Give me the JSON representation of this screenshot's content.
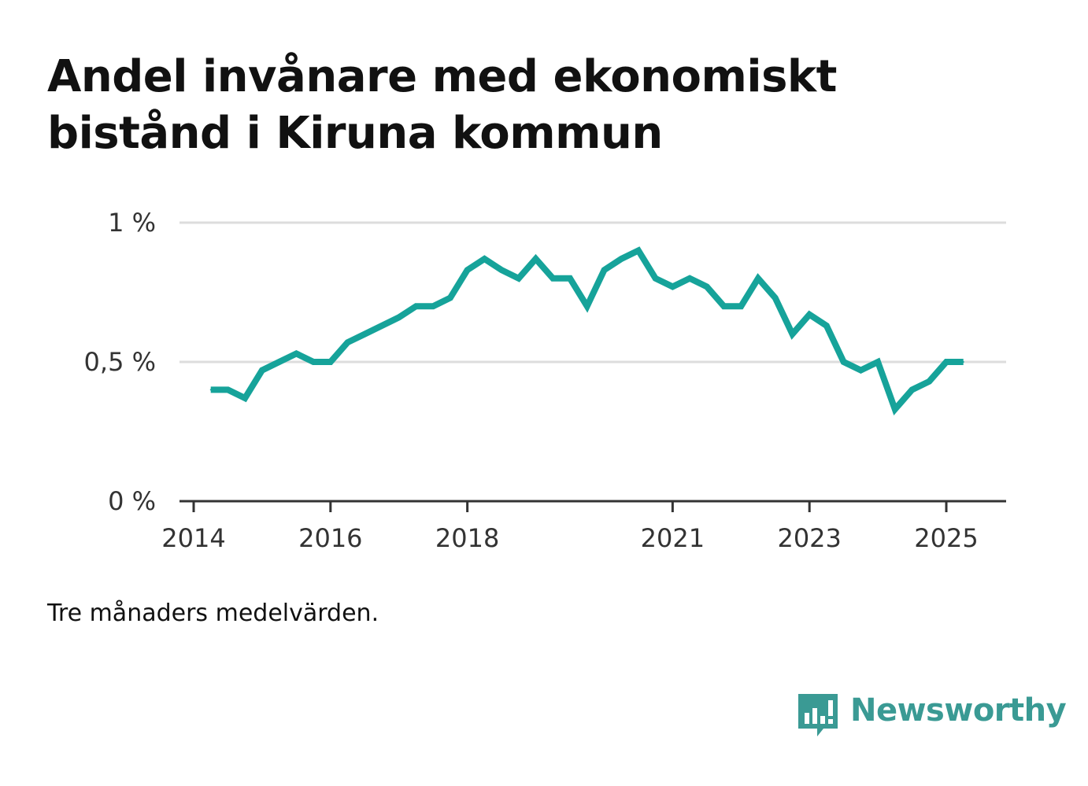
{
  "header": {
    "title": "Andel invånare med ekonomiskt bistånd i Kiruna kommun"
  },
  "note": "Tre månaders medelvärden.",
  "brand": {
    "name": "Newsworthy",
    "icon": "newsworthy-logo-icon",
    "color": "#3a9a94"
  },
  "chart_data": {
    "type": "line",
    "title": "Andel invånare med ekonomiskt bistånd i Kiruna kommun",
    "xlabel": "",
    "ylabel": "",
    "xlim": [
      2014.0,
      2026.0
    ],
    "ylim": [
      0,
      1
    ],
    "y_ticks": [
      {
        "value": 0,
        "label": "0 %"
      },
      {
        "value": 0.5,
        "label": "0,5 %"
      },
      {
        "value": 1,
        "label": "1 %"
      }
    ],
    "x_ticks": [
      {
        "value": 2014,
        "label": "2014"
      },
      {
        "value": 2016,
        "label": "2016"
      },
      {
        "value": 2018,
        "label": "2018"
      },
      {
        "value": 2021,
        "label": "2021"
      },
      {
        "value": 2023,
        "label": "2023"
      },
      {
        "value": 2025,
        "label": "2025"
      }
    ],
    "grid": true,
    "legend": "none",
    "color": "#16a39a",
    "series": [
      {
        "x": [
          2014.25,
          2014.5,
          2014.75,
          2015.0,
          2015.25,
          2015.5,
          2015.75,
          2016.0,
          2016.25,
          2016.5,
          2016.75,
          2017.0,
          2017.25,
          2017.5,
          2017.75,
          2018.0,
          2018.25,
          2018.5,
          2018.75,
          2019.0,
          2019.25,
          2019.5,
          2019.75,
          2020.0,
          2020.25,
          2020.5,
          2020.75,
          2021.0,
          2021.25,
          2021.5,
          2021.75,
          2022.0,
          2022.25,
          2022.5,
          2022.75,
          2023.0,
          2023.25,
          2023.5,
          2023.75,
          2024.0,
          2024.25,
          2024.5,
          2024.75,
          2025.0,
          2025.25
        ],
        "y": [
          0.4,
          0.4,
          0.37,
          0.47,
          0.5,
          0.53,
          0.5,
          0.5,
          0.57,
          0.6,
          0.63,
          0.66,
          0.7,
          0.7,
          0.73,
          0.83,
          0.87,
          0.83,
          0.8,
          0.87,
          0.8,
          0.8,
          0.7,
          0.83,
          0.87,
          0.9,
          0.8,
          0.77,
          0.8,
          0.77,
          0.7,
          0.7,
          0.8,
          0.73,
          0.6,
          0.67,
          0.63,
          0.5,
          0.47,
          0.5,
          0.33,
          0.4,
          0.43,
          0.5,
          0.5
        ]
      }
    ]
  }
}
